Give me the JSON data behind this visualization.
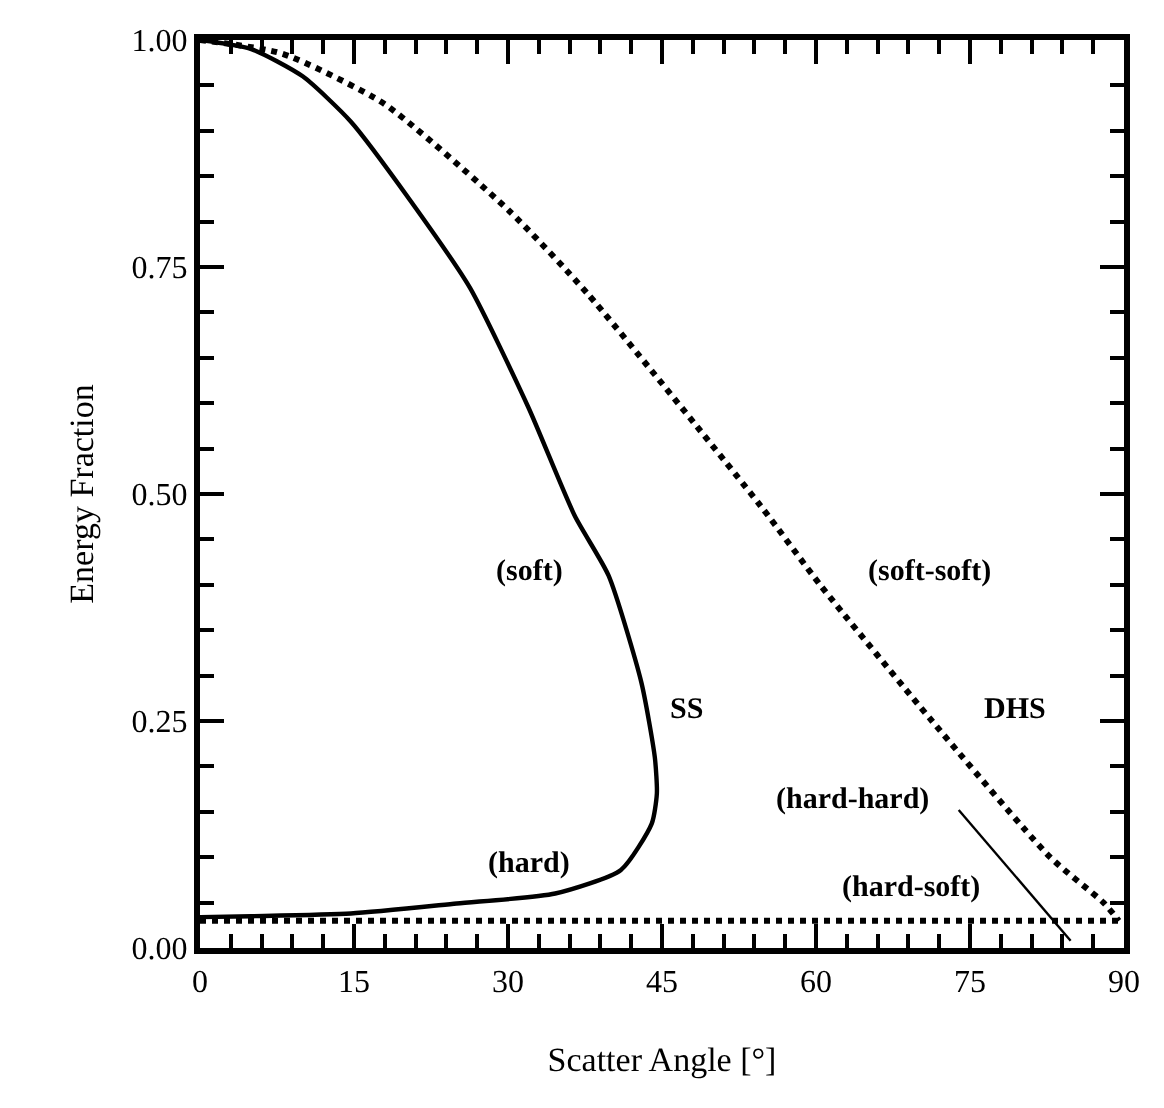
{
  "chart_data": {
    "type": "line",
    "xlabel": "Scatter Angle [°]",
    "ylabel": "Energy Fraction",
    "xlim": [
      0,
      90
    ],
    "ylim": [
      0,
      1
    ],
    "xticks": [
      0,
      15,
      30,
      45,
      60,
      75,
      90
    ],
    "yticks": [
      {
        "value": 0,
        "label": "0.00"
      },
      {
        "value": 0.25,
        "label": "0.25"
      },
      {
        "value": 0.5,
        "label": "0.50"
      },
      {
        "value": 0.75,
        "label": "0.75"
      },
      {
        "value": 1,
        "label": "1.00"
      }
    ],
    "marker": "none",
    "series": [
      {
        "color": "#000000",
        "line_style": "solid",
        "x": [
          0,
          5,
          10,
          14.7,
          20.5,
          26.3,
          32,
          36.5,
          39.8,
          43,
          44.3,
          44.5,
          44,
          41,
          34.6,
          25,
          14.7,
          5,
          0
        ],
        "values": [
          1,
          0.99,
          0.96,
          0.91,
          0.823,
          0.727,
          0.595,
          0.476,
          0.41,
          0.292,
          0.21,
          0.17,
          0.137,
          0.086,
          0.06,
          0.049,
          0.038,
          0.035,
          0.034
        ]
      },
      {
        "color": "#000000",
        "line_style": "dotted",
        "x": [
          0,
          8,
          17.9,
          30.1,
          37.8,
          54.6,
          60.4,
          71.3,
          82.8,
          88,
          89.5
        ],
        "values": [
          1,
          0.985,
          0.93,
          0.812,
          0.72,
          0.487,
          0.4,
          0.25,
          0.1,
          0.05,
          0.03
        ]
      },
      {
        "color": "#000000",
        "line_style": "dotted",
        "x": [
          0,
          90
        ],
        "values": [
          0.03,
          0.03
        ]
      },
      {
        "color": "#000000",
        "line_style": "solid",
        "x": [
          73.9,
          84.8
        ],
        "values": [
          0.152,
          0.008
        ]
      }
    ],
    "annotations": [
      "(soft)",
      "SS",
      "(hard)",
      "(soft-soft)",
      "DHS",
      "(hard-hard)",
      "(hard-soft)"
    ]
  }
}
